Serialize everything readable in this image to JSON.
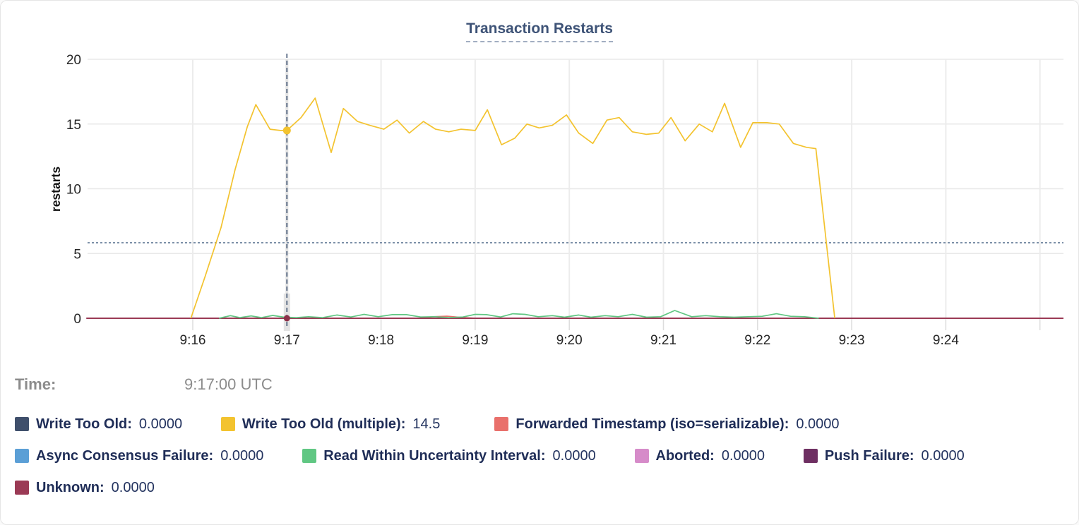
{
  "title": "Transaction Restarts",
  "time_row": {
    "label": "Time:",
    "value": "9:17:00 UTC"
  },
  "palette": {
    "grid_h": "#e8e8e8",
    "grid_v": "#ececec",
    "axis_text": "#262626",
    "ylabel_text": "#111111",
    "title_text": "#3e5377",
    "legend_text": "#1f2d57",
    "muted_text": "#8c8c8c",
    "average_line": "#7d90a8",
    "crosshair": "#3d5270",
    "hover_band": "#e3e3e3",
    "hover_dot_unknown": "#8d3049"
  },
  "chart_data": {
    "type": "line",
    "title": "Transaction Restarts",
    "xlabel": "",
    "ylabel": "restarts",
    "ylim": [
      0,
      20
    ],
    "yticks": [
      0,
      5,
      10,
      15,
      20
    ],
    "grid": true,
    "legend_position": "bottom",
    "x_ticks": [
      {
        "label": "9:16",
        "minute": 16
      },
      {
        "label": "9:17",
        "minute": 17
      },
      {
        "label": "9:18",
        "minute": 18
      },
      {
        "label": "9:19",
        "minute": 19
      },
      {
        "label": "9:20",
        "minute": 20
      },
      {
        "label": "9:21",
        "minute": 21
      },
      {
        "label": "9:22",
        "minute": 22
      },
      {
        "label": "9:23",
        "minute": 23
      },
      {
        "label": "9:24",
        "minute": 24
      }
    ],
    "x_gridline_minutes": [
      16,
      17,
      18,
      19,
      20,
      21,
      22,
      23,
      24,
      25
    ],
    "x_domain_minutes": [
      14.87,
      25.25
    ],
    "average_line_value": 5.83,
    "hover": {
      "minute": 17,
      "time": "9:17:00 UTC",
      "highlight_series": "Write Too Old (multiple)",
      "highlight_value": 14.5,
      "unknown_dot_value": 0
    },
    "legend_rows": [
      [
        0,
        1,
        2
      ],
      [
        3,
        4,
        5,
        6
      ],
      [
        7
      ]
    ],
    "series": [
      {
        "name": "Write Too Old",
        "color": "#3f4f6b",
        "legend_value": "0.0000",
        "points": [
          [
            14.87,
            0
          ],
          [
            25.25,
            0
          ]
        ]
      },
      {
        "name": "Write Too Old (multiple)",
        "color": "#f3c32f",
        "legend_value": "14.5",
        "points": [
          [
            15.98,
            0
          ],
          [
            16.13,
            3.2
          ],
          [
            16.3,
            7.0
          ],
          [
            16.45,
            11.5
          ],
          [
            16.58,
            14.8
          ],
          [
            16.67,
            16.5
          ],
          [
            16.82,
            14.6
          ],
          [
            16.93,
            14.5
          ],
          [
            17.0,
            14.5
          ],
          [
            17.15,
            15.5
          ],
          [
            17.3,
            17.0
          ],
          [
            17.47,
            12.8
          ],
          [
            17.6,
            16.2
          ],
          [
            17.75,
            15.2
          ],
          [
            17.88,
            14.9
          ],
          [
            18.03,
            14.6
          ],
          [
            18.17,
            15.3
          ],
          [
            18.3,
            14.3
          ],
          [
            18.45,
            15.2
          ],
          [
            18.58,
            14.6
          ],
          [
            18.72,
            14.4
          ],
          [
            18.85,
            14.6
          ],
          [
            19.0,
            14.5
          ],
          [
            19.13,
            16.1
          ],
          [
            19.28,
            13.4
          ],
          [
            19.42,
            13.9
          ],
          [
            19.55,
            15.0
          ],
          [
            19.68,
            14.7
          ],
          [
            19.82,
            14.9
          ],
          [
            19.97,
            15.7
          ],
          [
            20.1,
            14.3
          ],
          [
            20.25,
            13.5
          ],
          [
            20.4,
            15.3
          ],
          [
            20.53,
            15.5
          ],
          [
            20.67,
            14.4
          ],
          [
            20.82,
            14.2
          ],
          [
            20.95,
            14.3
          ],
          [
            21.08,
            15.5
          ],
          [
            21.23,
            13.7
          ],
          [
            21.38,
            15.0
          ],
          [
            21.52,
            14.4
          ],
          [
            21.65,
            16.6
          ],
          [
            21.82,
            13.2
          ],
          [
            21.95,
            15.1
          ],
          [
            22.1,
            15.1
          ],
          [
            22.23,
            15.0
          ],
          [
            22.38,
            13.5
          ],
          [
            22.52,
            13.2
          ],
          [
            22.62,
            13.1
          ],
          [
            22.82,
            0
          ]
        ]
      },
      {
        "name": "Forwarded Timestamp (iso=serializable)",
        "color": "#e9706b",
        "legend_value": "0.0000",
        "points": [
          [
            14.87,
            0
          ],
          [
            18.4,
            0
          ],
          [
            18.55,
            0.12
          ],
          [
            18.7,
            0.16
          ],
          [
            18.85,
            0.06
          ],
          [
            19.0,
            0
          ],
          [
            25.25,
            0
          ]
        ]
      },
      {
        "name": "Async Consensus Failure",
        "color": "#5b9fd6",
        "legend_value": "0.0000",
        "points": [
          [
            14.87,
            0
          ],
          [
            25.25,
            0
          ]
        ]
      },
      {
        "name": "Read Within Uncertainty Interval",
        "color": "#60c783",
        "legend_value": "0.0000",
        "points": [
          [
            16.28,
            0
          ],
          [
            16.4,
            0.2
          ],
          [
            16.5,
            0.05
          ],
          [
            16.62,
            0.18
          ],
          [
            16.73,
            0.05
          ],
          [
            16.85,
            0.22
          ],
          [
            16.97,
            0.08
          ],
          [
            17.1,
            0.05
          ],
          [
            17.23,
            0.12
          ],
          [
            17.38,
            0.05
          ],
          [
            17.53,
            0.25
          ],
          [
            17.68,
            0.1
          ],
          [
            17.82,
            0.3
          ],
          [
            17.97,
            0.12
          ],
          [
            18.12,
            0.28
          ],
          [
            18.27,
            0.28
          ],
          [
            18.42,
            0.1
          ],
          [
            18.57,
            0.12
          ],
          [
            18.72,
            0.05
          ],
          [
            18.87,
            0.1
          ],
          [
            19.0,
            0.3
          ],
          [
            19.12,
            0.28
          ],
          [
            19.27,
            0.1
          ],
          [
            19.4,
            0.35
          ],
          [
            19.53,
            0.3
          ],
          [
            19.67,
            0.12
          ],
          [
            19.82,
            0.2
          ],
          [
            19.95,
            0.08
          ],
          [
            20.1,
            0.25
          ],
          [
            20.23,
            0.08
          ],
          [
            20.38,
            0.2
          ],
          [
            20.52,
            0.12
          ],
          [
            20.67,
            0.3
          ],
          [
            20.82,
            0.08
          ],
          [
            20.97,
            0.12
          ],
          [
            21.12,
            0.6
          ],
          [
            21.3,
            0.12
          ],
          [
            21.45,
            0.2
          ],
          [
            21.6,
            0.12
          ],
          [
            21.75,
            0.08
          ],
          [
            21.9,
            0.12
          ],
          [
            22.05,
            0.15
          ],
          [
            22.2,
            0.35
          ],
          [
            22.35,
            0.15
          ],
          [
            22.5,
            0.12
          ],
          [
            22.65,
            0
          ]
        ]
      },
      {
        "name": "Aborted",
        "color": "#d68bc9",
        "legend_value": "0.0000",
        "points": [
          [
            14.87,
            0
          ],
          [
            25.25,
            0
          ]
        ]
      },
      {
        "name": "Push Failure",
        "color": "#6e2f62",
        "legend_value": "0.0000",
        "points": [
          [
            14.87,
            0
          ],
          [
            25.25,
            0
          ]
        ]
      },
      {
        "name": "Unknown",
        "color": "#9b3a55",
        "legend_value": "0.0000",
        "points": [
          [
            14.87,
            0
          ],
          [
            25.25,
            0
          ]
        ]
      }
    ]
  }
}
